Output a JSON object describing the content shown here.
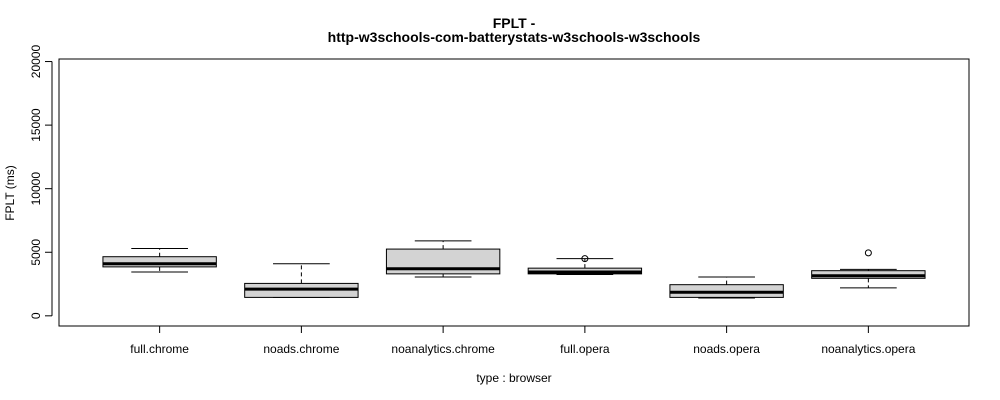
{
  "chart_data": {
    "type": "boxplot",
    "title_line1": "FPLT -",
    "title_line2": "http-w3schools-com-batterystats-w3schools-w3schools",
    "xlabel": "type : browser",
    "ylabel": "FPLT (ms)",
    "ylim": [
      -800,
      20200
    ],
    "yticks": [
      0,
      5000,
      10000,
      15000,
      20000
    ],
    "categories": [
      "full.chrome",
      "noads.chrome",
      "noanalytics.chrome",
      "full.opera",
      "noads.opera",
      "noanalytics.opera"
    ],
    "boxes": [
      {
        "category": "full.chrome",
        "whisker_low": 3450,
        "q1": 3850,
        "median": 4100,
        "q3": 4650,
        "whisker_high": 5300,
        "outliers": []
      },
      {
        "category": "noads.chrome",
        "whisker_low": 1450,
        "q1": 1450,
        "median": 2100,
        "q3": 2550,
        "whisker_high": 4100,
        "outliers": []
      },
      {
        "category": "noanalytics.chrome",
        "whisker_low": 3050,
        "q1": 3300,
        "median": 3700,
        "q3": 5250,
        "whisker_high": 5900,
        "outliers": []
      },
      {
        "category": "full.opera",
        "whisker_low": 3250,
        "q1": 3300,
        "median": 3450,
        "q3": 3750,
        "whisker_high": 4500,
        "outliers": [
          4500
        ]
      },
      {
        "category": "noads.opera",
        "whisker_low": 1400,
        "q1": 1450,
        "median": 1850,
        "q3": 2450,
        "whisker_high": 3050,
        "outliers": []
      },
      {
        "category": "noanalytics.opera",
        "whisker_low": 2200,
        "q1": 2950,
        "median": 3150,
        "q3": 3550,
        "whisker_high": 3650,
        "outliers": [
          4950
        ]
      }
    ],
    "box_fill": "#d3d3d3",
    "grid": false,
    "legend": "none"
  }
}
